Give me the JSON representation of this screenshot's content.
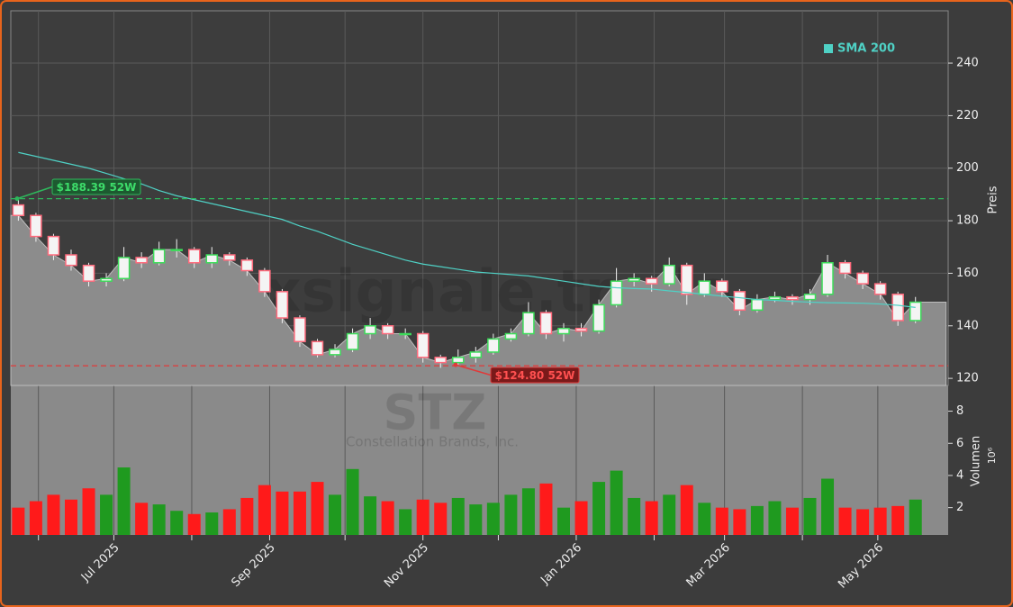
{
  "chart_data": [
    {
      "type": "candlestick",
      "watermark": "forexsignale.trade",
      "y_label": "Preis",
      "x": [
        3,
        10,
        17,
        24,
        31,
        38,
        45,
        52,
        59,
        66,
        73,
        80,
        87,
        94,
        101,
        108,
        115,
        122,
        129,
        136,
        143,
        150,
        157,
        164,
        171,
        178,
        185,
        192,
        199,
        206,
        213,
        220,
        227,
        234,
        241,
        248,
        255,
        262,
        269,
        276,
        283,
        290,
        297,
        304,
        311,
        318,
        325,
        332,
        339,
        346,
        353,
        360
      ],
      "open": [
        186,
        182,
        174,
        167,
        163,
        157,
        158,
        166,
        164,
        169,
        169,
        164,
        167,
        165,
        161,
        153,
        143,
        134,
        129,
        131,
        137,
        140,
        137,
        137,
        128,
        126,
        128,
        130,
        135,
        137,
        145,
        137,
        139,
        138,
        148,
        157,
        158,
        156,
        163,
        152,
        157,
        153,
        146,
        150,
        151,
        150,
        152,
        164,
        160,
        156,
        152,
        142
      ],
      "high": [
        188,
        183,
        175,
        169,
        164,
        160,
        170,
        168,
        172,
        173,
        170,
        170,
        168,
        166,
        162,
        154,
        144,
        135,
        133,
        139,
        143,
        141,
        139,
        138,
        129,
        131,
        132,
        137,
        139,
        149,
        146,
        141,
        141,
        150,
        162,
        160,
        159,
        166,
        164,
        160,
        158,
        154,
        152,
        153,
        152,
        154,
        167,
        165,
        161,
        157,
        153,
        151
      ],
      "low": [
        180,
        172,
        165,
        161,
        155,
        155,
        157,
        162,
        163,
        166,
        162,
        162,
        163,
        159,
        151,
        141,
        132,
        128,
        128,
        130,
        135,
        135,
        135,
        126,
        124,
        125,
        126,
        129,
        134,
        136,
        135,
        134,
        136,
        137,
        147,
        155,
        153,
        155,
        148,
        151,
        151,
        144,
        145,
        149,
        148,
        148,
        151,
        158,
        154,
        150,
        140,
        141
      ],
      "close": [
        182,
        174,
        167,
        163,
        157,
        158,
        166,
        164,
        169,
        169,
        164,
        167,
        165,
        161,
        153,
        143,
        134,
        129,
        131,
        137,
        140,
        137,
        137,
        128,
        126,
        128,
        130,
        135,
        137,
        145,
        137,
        139,
        138,
        148,
        157,
        158,
        156,
        163,
        152,
        157,
        153,
        146,
        150,
        151,
        150,
        152,
        164,
        160,
        156,
        152,
        142,
        149
      ],
      "up_color": "#3ddc5a",
      "down_color": "#ff6b7d",
      "series": [
        {
          "name": "SMA 200",
          "color": "#4fd1c5",
          "values": [
            206,
            204.5,
            203,
            201.5,
            200,
            198,
            196,
            194,
            191.5,
            189.5,
            188,
            186.5,
            185,
            183.5,
            182,
            180.5,
            178,
            176,
            173.5,
            171,
            169,
            167,
            165,
            163.5,
            162.5,
            161.5,
            160.5,
            160,
            159.5,
            159,
            158,
            157,
            156,
            155,
            154.5,
            154.2,
            154,
            153.3,
            152.7,
            152,
            151.3,
            150.7,
            150,
            149.7,
            149.3,
            149,
            148.8,
            148.7,
            148.6,
            148.3,
            147.8,
            147
          ]
        }
      ],
      "hlines": [
        {
          "value": 188.39,
          "label": "$188.39 52W",
          "color": "#2eb85c"
        },
        {
          "value": 124.8,
          "label": "$124.80 52W",
          "color": "#e03a3a"
        }
      ],
      "xlim": [
        0,
        373
      ],
      "ylim": [
        117.3,
        259.9
      ],
      "yticks": [
        120,
        140,
        160,
        180,
        200,
        220,
        240
      ],
      "grid": true
    },
    {
      "type": "bar",
      "watermark": "STZ",
      "subtitle": "Constellation Brands, Inc.",
      "y_label": "Volumen",
      "y_unit": "10⁶",
      "x": [
        3,
        10,
        17,
        24,
        31,
        38,
        45,
        52,
        59,
        66,
        73,
        80,
        87,
        94,
        101,
        108,
        115,
        122,
        129,
        136,
        143,
        150,
        157,
        164,
        171,
        178,
        185,
        192,
        199,
        206,
        213,
        220,
        227,
        234,
        241,
        248,
        255,
        262,
        269,
        276,
        283,
        290,
        297,
        304,
        311,
        318,
        325,
        332,
        339,
        346,
        353,
        360
      ],
      "values": [
        2.0,
        2.4,
        2.8,
        2.5,
        3.2,
        2.8,
        4.5,
        2.3,
        2.2,
        1.8,
        1.6,
        1.7,
        1.9,
        2.6,
        3.4,
        3.0,
        3.0,
        3.6,
        2.8,
        4.4,
        2.7,
        2.4,
        1.9,
        2.5,
        2.3,
        2.6,
        2.2,
        2.3,
        2.8,
        3.2,
        3.5,
        2.0,
        2.4,
        3.6,
        4.3,
        2.6,
        2.4,
        2.8,
        3.4,
        2.3,
        2.0,
        1.9,
        2.1,
        2.4,
        2.0,
        2.6,
        3.8,
        2.0,
        1.9,
        2.0,
        2.1,
        2.5
      ],
      "up_color": "#1f9a1f",
      "down_color": "#ff1a1a",
      "xlim": [
        0,
        373
      ],
      "xticks": [
        {
          "value": 41,
          "label": "Jul 2025"
        },
        {
          "value": 103,
          "label": "Sep 2025"
        },
        {
          "value": 164,
          "label": "Nov 2025"
        },
        {
          "value": 225,
          "label": "Jan 2026"
        },
        {
          "value": 284,
          "label": "Mar 2026"
        },
        {
          "value": 345,
          "label": "May 2026"
        }
      ],
      "xminorticks": [
        11,
        72,
        133,
        194,
        256,
        315
      ],
      "ylim": [
        0.3,
        9.6
      ],
      "yticks": [
        2,
        4,
        6,
        8
      ]
    }
  ]
}
